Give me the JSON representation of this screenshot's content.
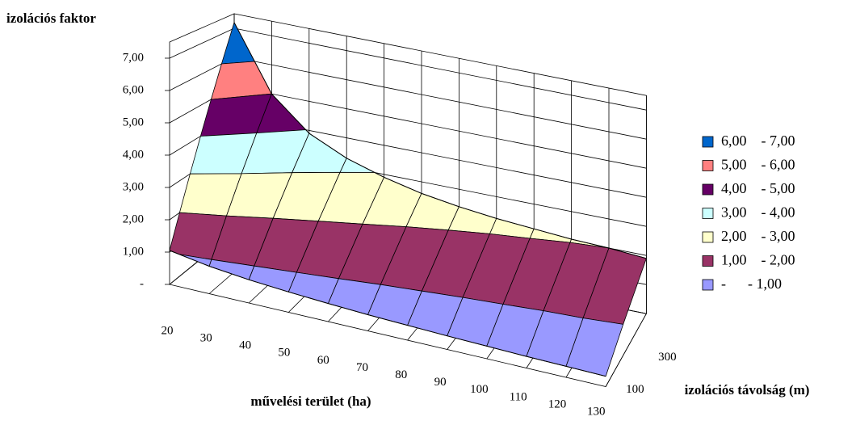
{
  "chart_data": {
    "type": "surface",
    "y_title": "izolációs faktor",
    "x_title": "művelési terület (ha)",
    "depth_title": "izolációs távolság (m)",
    "categories": [
      "20",
      "30",
      "40",
      "50",
      "60",
      "70",
      "80",
      "90",
      "100",
      "110",
      "120",
      "130"
    ],
    "series": [
      {
        "name": "100",
        "values": [
          1.05,
          0.85,
          0.72,
          0.63,
          0.56,
          0.5,
          0.46,
          0.42,
          0.39,
          0.36,
          0.34,
          0.32
        ]
      },
      {
        "name": "300",
        "values": [
          7.2,
          5.0,
          3.9,
          3.3,
          2.9,
          2.6,
          2.4,
          2.25,
          2.15,
          2.05,
          2.0,
          1.9
        ]
      }
    ],
    "ylim": [
      0,
      7.5
    ],
    "yticks": [
      {
        "value": 0,
        "label": "-"
      },
      {
        "value": 1,
        "label": "1,00"
      },
      {
        "value": 2,
        "label": "2,00"
      },
      {
        "value": 3,
        "label": "3,00"
      },
      {
        "value": 4,
        "label": "4,00"
      },
      {
        "value": 5,
        "label": "5,00"
      },
      {
        "value": 6,
        "label": "6,00"
      },
      {
        "value": 7,
        "label": "7,00"
      }
    ],
    "grid": true,
    "legend": [
      {
        "name": "6,00    - 7,00",
        "color": "#0066cc"
      },
      {
        "name": "5,00    - 6,00",
        "color": "#ff8080"
      },
      {
        "name": "4,00    - 5,00",
        "color": "#660066"
      },
      {
        "name": "3,00    - 4,00",
        "color": "#ccffff"
      },
      {
        "name": "2,00    - 3,00",
        "color": "#ffffcc"
      },
      {
        "name": "1,00    - 2,00",
        "color": "#993366"
      },
      {
        "name": "-      - 1,00",
        "color": "#9999ff"
      }
    ]
  }
}
